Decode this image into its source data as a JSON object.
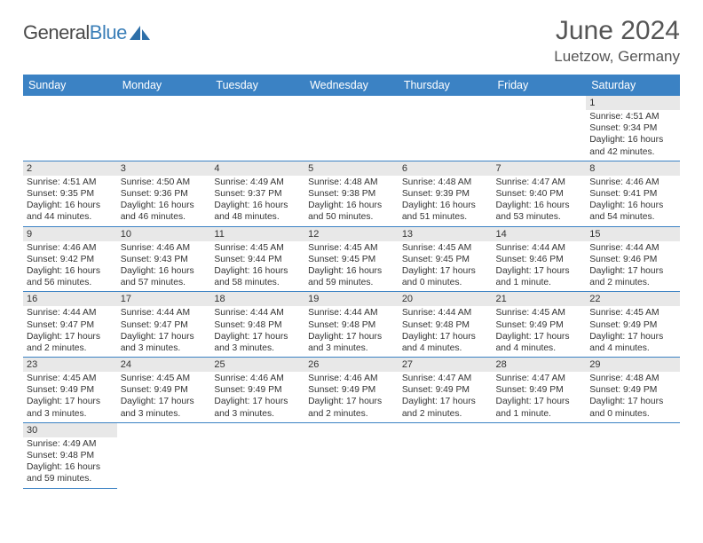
{
  "logo": {
    "word1": "General",
    "word2": "Blue"
  },
  "title": "June 2024",
  "location": "Luetzow, Germany",
  "colors": {
    "header_bg": "#3b82c4",
    "header_fg": "#ffffff",
    "daynum_bg": "#e8e8e8",
    "row_border": "#3b82c4",
    "title_color": "#555555",
    "text_color": "#333333",
    "logo_gray": "#4a4a4a",
    "logo_blue": "#3b7fb8"
  },
  "weekdays": [
    "Sunday",
    "Monday",
    "Tuesday",
    "Wednesday",
    "Thursday",
    "Friday",
    "Saturday"
  ],
  "weeks": [
    [
      {
        "empty": true
      },
      {
        "empty": true
      },
      {
        "empty": true
      },
      {
        "empty": true
      },
      {
        "empty": true
      },
      {
        "empty": true
      },
      {
        "day": "1",
        "sunrise": "Sunrise: 4:51 AM",
        "sunset": "Sunset: 9:34 PM",
        "daylight": "Daylight: 16 hours and 42 minutes."
      }
    ],
    [
      {
        "day": "2",
        "sunrise": "Sunrise: 4:51 AM",
        "sunset": "Sunset: 9:35 PM",
        "daylight": "Daylight: 16 hours and 44 minutes."
      },
      {
        "day": "3",
        "sunrise": "Sunrise: 4:50 AM",
        "sunset": "Sunset: 9:36 PM",
        "daylight": "Daylight: 16 hours and 46 minutes."
      },
      {
        "day": "4",
        "sunrise": "Sunrise: 4:49 AM",
        "sunset": "Sunset: 9:37 PM",
        "daylight": "Daylight: 16 hours and 48 minutes."
      },
      {
        "day": "5",
        "sunrise": "Sunrise: 4:48 AM",
        "sunset": "Sunset: 9:38 PM",
        "daylight": "Daylight: 16 hours and 50 minutes."
      },
      {
        "day": "6",
        "sunrise": "Sunrise: 4:48 AM",
        "sunset": "Sunset: 9:39 PM",
        "daylight": "Daylight: 16 hours and 51 minutes."
      },
      {
        "day": "7",
        "sunrise": "Sunrise: 4:47 AM",
        "sunset": "Sunset: 9:40 PM",
        "daylight": "Daylight: 16 hours and 53 minutes."
      },
      {
        "day": "8",
        "sunrise": "Sunrise: 4:46 AM",
        "sunset": "Sunset: 9:41 PM",
        "daylight": "Daylight: 16 hours and 54 minutes."
      }
    ],
    [
      {
        "day": "9",
        "sunrise": "Sunrise: 4:46 AM",
        "sunset": "Sunset: 9:42 PM",
        "daylight": "Daylight: 16 hours and 56 minutes."
      },
      {
        "day": "10",
        "sunrise": "Sunrise: 4:46 AM",
        "sunset": "Sunset: 9:43 PM",
        "daylight": "Daylight: 16 hours and 57 minutes."
      },
      {
        "day": "11",
        "sunrise": "Sunrise: 4:45 AM",
        "sunset": "Sunset: 9:44 PM",
        "daylight": "Daylight: 16 hours and 58 minutes."
      },
      {
        "day": "12",
        "sunrise": "Sunrise: 4:45 AM",
        "sunset": "Sunset: 9:45 PM",
        "daylight": "Daylight: 16 hours and 59 minutes."
      },
      {
        "day": "13",
        "sunrise": "Sunrise: 4:45 AM",
        "sunset": "Sunset: 9:45 PM",
        "daylight": "Daylight: 17 hours and 0 minutes."
      },
      {
        "day": "14",
        "sunrise": "Sunrise: 4:44 AM",
        "sunset": "Sunset: 9:46 PM",
        "daylight": "Daylight: 17 hours and 1 minute."
      },
      {
        "day": "15",
        "sunrise": "Sunrise: 4:44 AM",
        "sunset": "Sunset: 9:46 PM",
        "daylight": "Daylight: 17 hours and 2 minutes."
      }
    ],
    [
      {
        "day": "16",
        "sunrise": "Sunrise: 4:44 AM",
        "sunset": "Sunset: 9:47 PM",
        "daylight": "Daylight: 17 hours and 2 minutes."
      },
      {
        "day": "17",
        "sunrise": "Sunrise: 4:44 AM",
        "sunset": "Sunset: 9:47 PM",
        "daylight": "Daylight: 17 hours and 3 minutes."
      },
      {
        "day": "18",
        "sunrise": "Sunrise: 4:44 AM",
        "sunset": "Sunset: 9:48 PM",
        "daylight": "Daylight: 17 hours and 3 minutes."
      },
      {
        "day": "19",
        "sunrise": "Sunrise: 4:44 AM",
        "sunset": "Sunset: 9:48 PM",
        "daylight": "Daylight: 17 hours and 3 minutes."
      },
      {
        "day": "20",
        "sunrise": "Sunrise: 4:44 AM",
        "sunset": "Sunset: 9:48 PM",
        "daylight": "Daylight: 17 hours and 4 minutes."
      },
      {
        "day": "21",
        "sunrise": "Sunrise: 4:45 AM",
        "sunset": "Sunset: 9:49 PM",
        "daylight": "Daylight: 17 hours and 4 minutes."
      },
      {
        "day": "22",
        "sunrise": "Sunrise: 4:45 AM",
        "sunset": "Sunset: 9:49 PM",
        "daylight": "Daylight: 17 hours and 4 minutes."
      }
    ],
    [
      {
        "day": "23",
        "sunrise": "Sunrise: 4:45 AM",
        "sunset": "Sunset: 9:49 PM",
        "daylight": "Daylight: 17 hours and 3 minutes."
      },
      {
        "day": "24",
        "sunrise": "Sunrise: 4:45 AM",
        "sunset": "Sunset: 9:49 PM",
        "daylight": "Daylight: 17 hours and 3 minutes."
      },
      {
        "day": "25",
        "sunrise": "Sunrise: 4:46 AM",
        "sunset": "Sunset: 9:49 PM",
        "daylight": "Daylight: 17 hours and 3 minutes."
      },
      {
        "day": "26",
        "sunrise": "Sunrise: 4:46 AM",
        "sunset": "Sunset: 9:49 PM",
        "daylight": "Daylight: 17 hours and 2 minutes."
      },
      {
        "day": "27",
        "sunrise": "Sunrise: 4:47 AM",
        "sunset": "Sunset: 9:49 PM",
        "daylight": "Daylight: 17 hours and 2 minutes."
      },
      {
        "day": "28",
        "sunrise": "Sunrise: 4:47 AM",
        "sunset": "Sunset: 9:49 PM",
        "daylight": "Daylight: 17 hours and 1 minute."
      },
      {
        "day": "29",
        "sunrise": "Sunrise: 4:48 AM",
        "sunset": "Sunset: 9:49 PM",
        "daylight": "Daylight: 17 hours and 0 minutes."
      }
    ],
    [
      {
        "day": "30",
        "sunrise": "Sunrise: 4:49 AM",
        "sunset": "Sunset: 9:48 PM",
        "daylight": "Daylight: 16 hours and 59 minutes."
      },
      {
        "empty": true
      },
      {
        "empty": true
      },
      {
        "empty": true
      },
      {
        "empty": true
      },
      {
        "empty": true
      },
      {
        "empty": true
      }
    ]
  ]
}
